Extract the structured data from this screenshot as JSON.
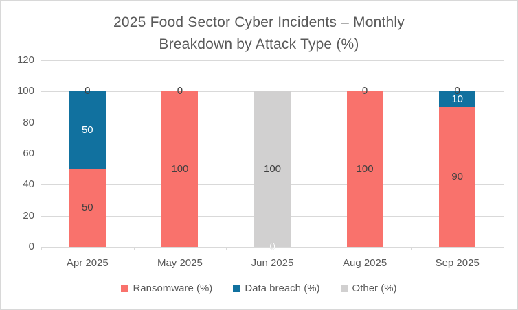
{
  "window": {
    "background": "#ffffff",
    "border_color": "#d8d8d8"
  },
  "chart_data": {
    "type": "bar",
    "stacked": true,
    "title": "2025 Food Sector Cyber Incidents – Monthly Breakdown by Attack Type (%)",
    "title_lines": [
      "2025 Food Sector Cyber Incidents – Monthly",
      "Breakdown by Attack Type (%)"
    ],
    "title_color": "#595959",
    "categories": [
      "Apr 2025",
      "May 2025",
      "Jun 2025",
      "Aug 2025",
      "Sep 2025"
    ],
    "series": [
      {
        "name": "Ransomware (%)",
        "color": "#f9726c",
        "label_color": "#404040",
        "values": [
          50,
          100,
          0,
          100,
          90
        ]
      },
      {
        "name": "Data breach (%)",
        "color": "#11719f",
        "label_color": "#ffffff",
        "values": [
          50,
          0,
          0,
          0,
          10
        ]
      },
      {
        "name": "Other (%)",
        "color": "#d1d0d0",
        "label_color": "#404040",
        "values": [
          0,
          0,
          100,
          0,
          0
        ]
      }
    ],
    "ylim": [
      0,
      120
    ],
    "yticks": [
      0,
      20,
      40,
      60,
      80,
      100,
      120
    ],
    "grid": true,
    "gridline_color": "#d9d9d9",
    "axis_text_color": "#595959",
    "show_data_labels": true,
    "legend_position": "bottom"
  }
}
